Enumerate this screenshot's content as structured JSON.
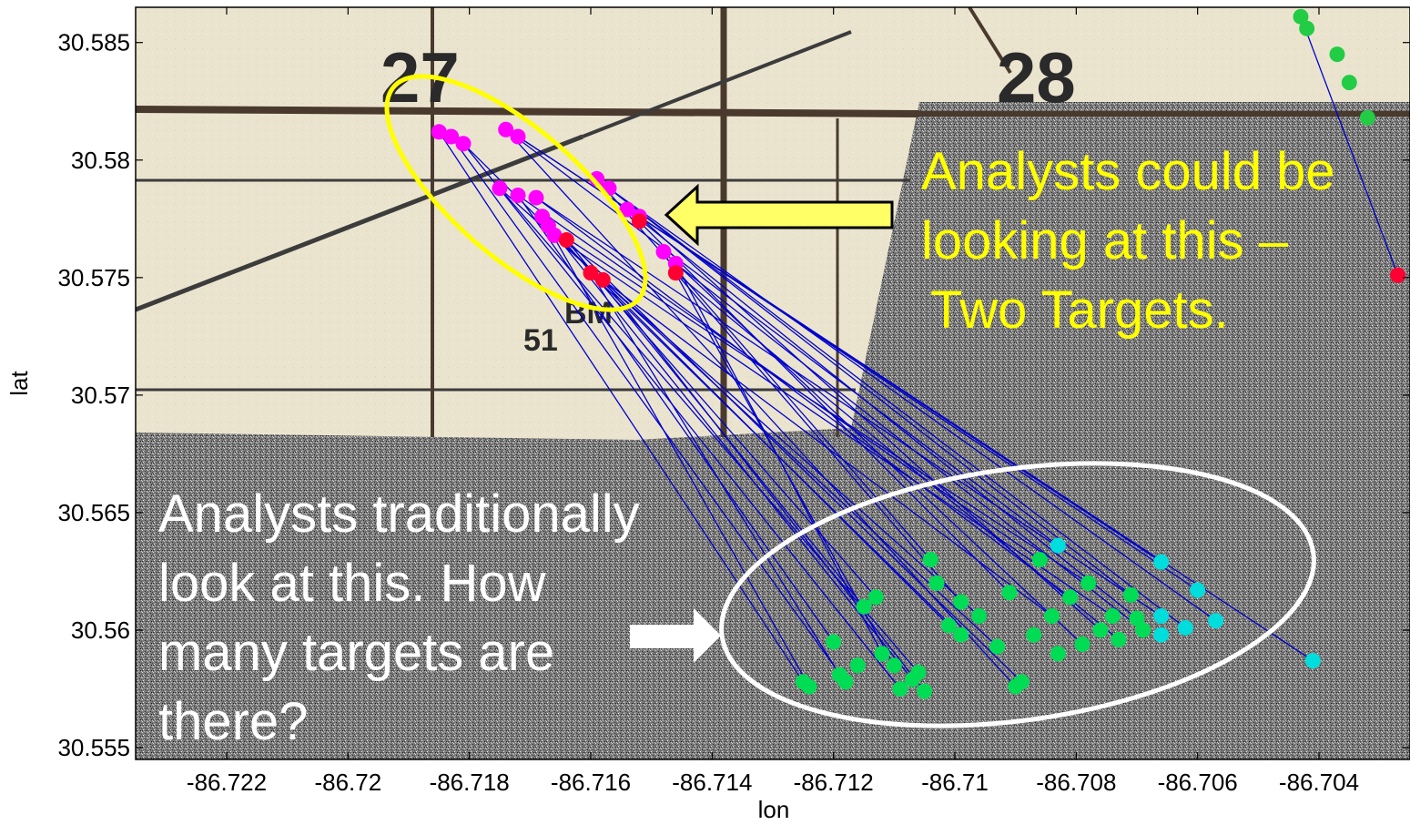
{
  "chart_data": {
    "type": "scatter",
    "title": "",
    "xlabel": "lon",
    "ylabel": "lat",
    "xlim": [
      -86.7235,
      -86.7025
    ],
    "ylim": [
      30.5545,
      30.5865
    ],
    "xticks": [
      -86.722,
      -86.72,
      -86.718,
      -86.716,
      -86.714,
      -86.712,
      -86.71,
      -86.708,
      -86.706,
      -86.704
    ],
    "xtick_labels": [
      "-86.722",
      "-86.72",
      "-86.718",
      "-86.716",
      "-86.714",
      "-86.712",
      "-86.71",
      "-86.708",
      "-86.706",
      "-86.704"
    ],
    "yticks": [
      30.555,
      30.56,
      30.565,
      30.57,
      30.575,
      30.58,
      30.585
    ],
    "ytick_labels": [
      "30.555",
      "30.56",
      "30.565",
      "30.57",
      "30.575",
      "30.58",
      "30.585"
    ],
    "grid": false,
    "background": "map image (topographic map top half, noisy sonar texture bottom)",
    "series": [
      {
        "role": "start-points-magenta",
        "color": "#ff00ff",
        "points": [
          [
            -86.7185,
            30.5812
          ],
          [
            -86.7183,
            30.581
          ],
          [
            -86.7181,
            30.5807
          ],
          [
            -86.7174,
            30.5813
          ],
          [
            -86.7172,
            30.581
          ],
          [
            -86.7175,
            30.5788
          ],
          [
            -86.7172,
            30.5785
          ],
          [
            -86.7169,
            30.5784
          ],
          [
            -86.7168,
            30.5776
          ],
          [
            -86.7167,
            30.5772
          ],
          [
            -86.7166,
            30.5768
          ],
          [
            -86.7159,
            30.5792
          ],
          [
            -86.7157,
            30.5788
          ],
          [
            -86.7154,
            30.5779
          ],
          [
            -86.7152,
            30.5776
          ],
          [
            -86.7148,
            30.5761
          ],
          [
            -86.7146,
            30.5756
          ]
        ]
      },
      {
        "role": "start-points-red",
        "color": "#ff0033",
        "points": [
          [
            -86.7164,
            30.5766
          ],
          [
            -86.716,
            30.5752
          ],
          [
            -86.7158,
            30.5749
          ],
          [
            -86.7152,
            30.5774
          ],
          [
            -86.7146,
            30.5752
          ],
          [
            -86.7027,
            30.5751
          ]
        ]
      },
      {
        "role": "end-points-green",
        "color": "#00dd55",
        "points": [
          [
            -86.7125,
            30.5578
          ],
          [
            -86.7124,
            30.5576
          ],
          [
            -86.712,
            30.5595
          ],
          [
            -86.7119,
            30.5581
          ],
          [
            -86.7118,
            30.5578
          ],
          [
            -86.7116,
            30.5585
          ],
          [
            -86.7115,
            30.561
          ],
          [
            -86.7113,
            30.5614
          ],
          [
            -86.7112,
            30.559
          ],
          [
            -86.711,
            30.5585
          ],
          [
            -86.7109,
            30.5575
          ],
          [
            -86.7107,
            30.5579
          ],
          [
            -86.7106,
            30.5582
          ],
          [
            -86.7105,
            30.5574
          ],
          [
            -86.7104,
            30.563
          ],
          [
            -86.7103,
            30.562
          ],
          [
            -86.7101,
            30.5602
          ],
          [
            -86.7099,
            30.5598
          ],
          [
            -86.7099,
            30.5612
          ],
          [
            -86.7096,
            30.5606
          ],
          [
            -86.7093,
            30.5593
          ],
          [
            -86.7091,
            30.5616
          ],
          [
            -86.709,
            30.5576
          ],
          [
            -86.7089,
            30.5578
          ],
          [
            -86.7087,
            30.5598
          ],
          [
            -86.7086,
            30.563
          ],
          [
            -86.7084,
            30.5606
          ],
          [
            -86.7083,
            30.559
          ],
          [
            -86.7081,
            30.5614
          ],
          [
            -86.7079,
            30.5594
          ],
          [
            -86.7078,
            30.562
          ],
          [
            -86.7076,
            30.56
          ],
          [
            -86.7074,
            30.5606
          ],
          [
            -86.7073,
            30.5596
          ],
          [
            -86.7071,
            30.5615
          ],
          [
            -86.707,
            30.5605
          ],
          [
            -86.7069,
            30.56
          ]
        ]
      },
      {
        "role": "end-points-cyan",
        "color": "#00dddd",
        "points": [
          [
            -86.7083,
            30.5636
          ],
          [
            -86.7066,
            30.5629
          ],
          [
            -86.7066,
            30.5606
          ],
          [
            -86.7066,
            30.5598
          ],
          [
            -86.7062,
            30.5601
          ],
          [
            -86.706,
            30.5617
          ],
          [
            -86.7057,
            30.5604
          ],
          [
            -86.7041,
            30.5587
          ]
        ]
      },
      {
        "role": "top-right-track-green",
        "color": "#22cc44",
        "points": [
          [
            -86.7043,
            30.5861
          ],
          [
            -86.7042,
            30.5856
          ],
          [
            -86.7037,
            30.5845
          ],
          [
            -86.7035,
            30.5833
          ],
          [
            -86.7032,
            30.5818
          ]
        ]
      }
    ],
    "tracks": {
      "color": "#0000cc",
      "segments": [
        [
          [
            -86.7185,
            30.5812
          ],
          [
            -86.7125,
            30.5578
          ]
        ],
        [
          [
            -86.7183,
            30.581
          ],
          [
            -86.7118,
            30.5578
          ]
        ],
        [
          [
            -86.7181,
            30.5807
          ],
          [
            -86.7109,
            30.5575
          ]
        ],
        [
          [
            -86.7181,
            30.5807
          ],
          [
            -86.7101,
            30.5602
          ]
        ],
        [
          [
            -86.7174,
            30.5813
          ],
          [
            -86.709,
            30.5576
          ]
        ],
        [
          [
            -86.7174,
            30.5813
          ],
          [
            -86.7083,
            30.5636
          ]
        ],
        [
          [
            -86.7172,
            30.581
          ],
          [
            -86.7066,
            30.5629
          ]
        ],
        [
          [
            -86.7172,
            30.581
          ],
          [
            -86.7041,
            30.5587
          ]
        ],
        [
          [
            -86.7175,
            30.5788
          ],
          [
            -86.7106,
            30.5582
          ]
        ],
        [
          [
            -86.7175,
            30.5788
          ],
          [
            -86.7096,
            30.5606
          ]
        ],
        [
          [
            -86.7172,
            30.5785
          ],
          [
            -86.712,
            30.5595
          ]
        ],
        [
          [
            -86.7172,
            30.5785
          ],
          [
            -86.7086,
            30.563
          ]
        ],
        [
          [
            -86.7169,
            30.5784
          ],
          [
            -86.7081,
            30.5614
          ]
        ],
        [
          [
            -86.7169,
            30.5784
          ],
          [
            -86.7066,
            30.5606
          ]
        ],
        [
          [
            -86.7168,
            30.5776
          ],
          [
            -86.7124,
            30.5576
          ]
        ],
        [
          [
            -86.7168,
            30.5776
          ],
          [
            -86.7113,
            30.5614
          ]
        ],
        [
          [
            -86.7167,
            30.5772
          ],
          [
            -86.7107,
            30.5579
          ]
        ],
        [
          [
            -86.7167,
            30.5772
          ],
          [
            -86.7078,
            30.562
          ]
        ],
        [
          [
            -86.7166,
            30.5768
          ],
          [
            -86.7093,
            30.5593
          ]
        ],
        [
          [
            -86.7166,
            30.5768
          ],
          [
            -86.7074,
            30.5606
          ]
        ],
        [
          [
            -86.7164,
            30.5766
          ],
          [
            -86.7115,
            30.561
          ]
        ],
        [
          [
            -86.7164,
            30.5766
          ],
          [
            -86.7089,
            30.5578
          ]
        ],
        [
          [
            -86.716,
            30.5752
          ],
          [
            -86.7119,
            30.5581
          ]
        ],
        [
          [
            -86.716,
            30.5752
          ],
          [
            -86.7099,
            30.5598
          ]
        ],
        [
          [
            -86.7158,
            30.5749
          ],
          [
            -86.7105,
            30.5574
          ]
        ],
        [
          [
            -86.7158,
            30.5749
          ],
          [
            -86.7084,
            30.5606
          ]
        ],
        [
          [
            -86.7159,
            30.5792
          ],
          [
            -86.7104,
            30.563
          ]
        ],
        [
          [
            -86.7159,
            30.5792
          ],
          [
            -86.7071,
            30.5615
          ]
        ],
        [
          [
            -86.7157,
            30.5788
          ],
          [
            -86.7062,
            30.5601
          ]
        ],
        [
          [
            -86.7157,
            30.5788
          ],
          [
            -86.7057,
            30.5604
          ]
        ],
        [
          [
            -86.7154,
            30.5779
          ],
          [
            -86.7091,
            30.5616
          ]
        ],
        [
          [
            -86.7154,
            30.5779
          ],
          [
            -86.707,
            30.5605
          ]
        ],
        [
          [
            -86.7152,
            30.5776
          ],
          [
            -86.7076,
            30.56
          ]
        ],
        [
          [
            -86.7152,
            30.5776
          ],
          [
            -86.706,
            30.5617
          ]
        ],
        [
          [
            -86.7148,
            30.5761
          ],
          [
            -86.711,
            30.5585
          ]
        ],
        [
          [
            -86.7148,
            30.5761
          ],
          [
            -86.7079,
            30.5594
          ]
        ],
        [
          [
            -86.7146,
            30.5756
          ],
          [
            -86.7112,
            30.559
          ]
        ],
        [
          [
            -86.7146,
            30.5756
          ],
          [
            -86.7069,
            30.56
          ]
        ],
        [
          [
            -86.7146,
            30.5752
          ],
          [
            -86.7073,
            30.5596
          ]
        ],
        [
          [
            -86.7146,
            30.5752
          ],
          [
            -86.7099,
            30.5612
          ]
        ],
        [
          [
            -86.7043,
            30.5861
          ],
          [
            -86.7027,
            30.5751
          ]
        ]
      ]
    },
    "annotations": [
      {
        "text": "Analysts could be looking at this – Two Targets.",
        "color": "#ffff00"
      },
      {
        "text": "Analysts traditionally look at this. How many targets are there?",
        "color": "#ffffff"
      }
    ]
  },
  "background_labels": {
    "section_27": "27",
    "section_28": "28",
    "bm": "BM",
    "bm_number": "51"
  },
  "annotations": {
    "yellow_lines": [
      "Analysts could be",
      "looking at this –",
      "Two Targets."
    ],
    "white_lines": [
      "Analysts traditionally",
      "look at this. How",
      "many targets are",
      "there?"
    ]
  }
}
